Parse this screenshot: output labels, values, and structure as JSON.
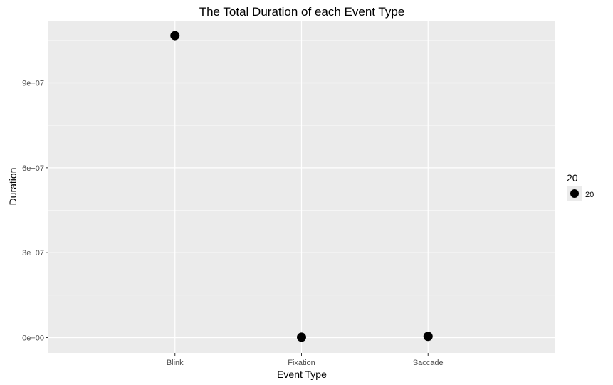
{
  "chart_data": {
    "type": "scatter",
    "title": "The Total Duration of each Event Type",
    "xlabel": "Event Type",
    "ylabel": "Duration",
    "categories": [
      "Blink",
      "Fixation",
      "Saccade"
    ],
    "values": [
      106700000,
      150000,
      450000
    ],
    "y_ticks": [
      0,
      30000000,
      60000000,
      90000000
    ],
    "y_tick_labels": [
      "0e+00",
      "3e+07",
      "6e+07",
      "9e+07"
    ],
    "ylim": [
      -5400000,
      112000000
    ],
    "grid": true,
    "legend": {
      "position": "right",
      "title": "20",
      "entries": [
        "20"
      ]
    },
    "colors": {
      "panel": "#ebebeb",
      "grid_major": "#ffffff",
      "point": "#000000"
    }
  }
}
